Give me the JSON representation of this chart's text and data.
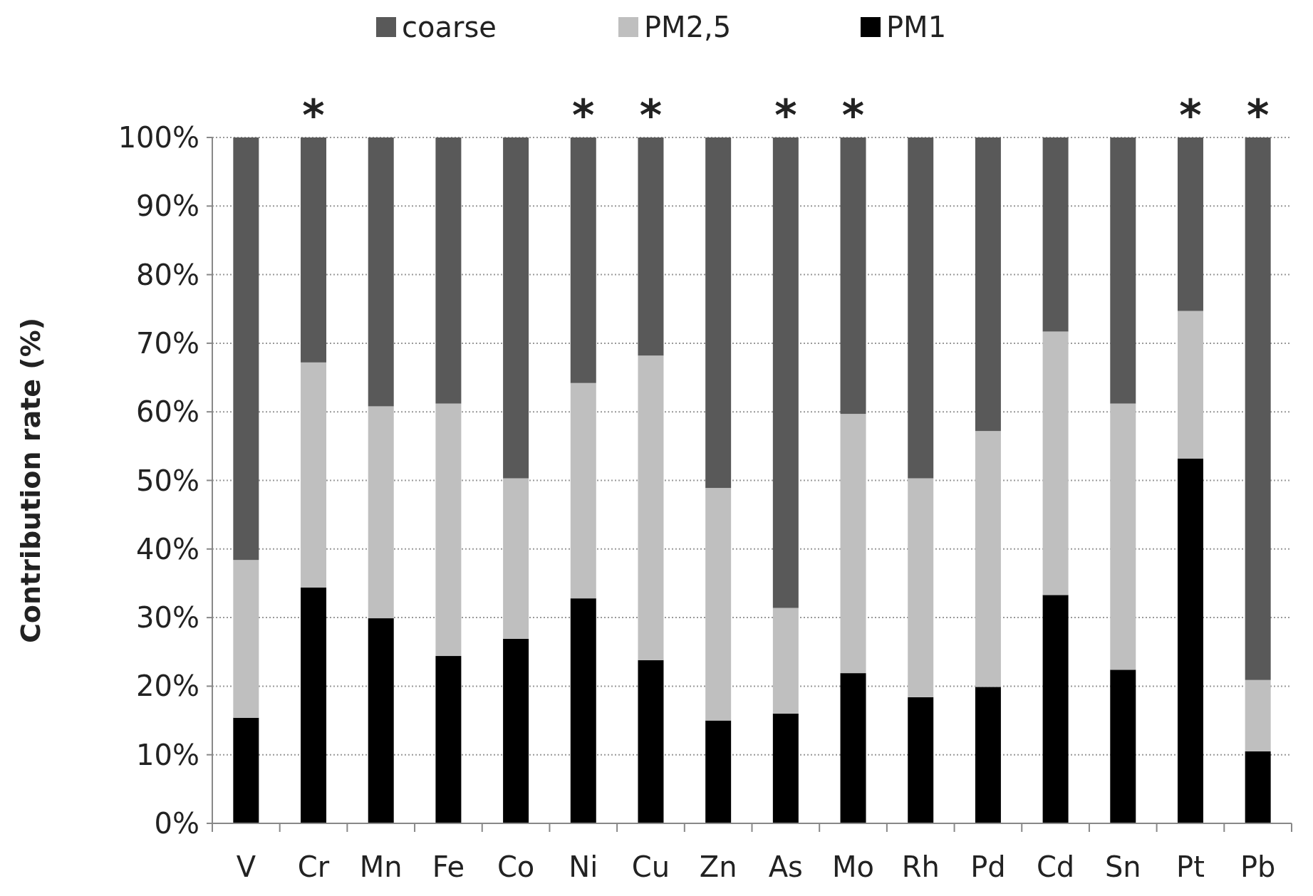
{
  "chart_data": {
    "type": "bar",
    "stacked": true,
    "ylabel": "Contribution rate (%)",
    "categories": [
      "V",
      "Cr",
      "Mn",
      "Fe",
      "Co",
      "Ni",
      "Cu",
      "Zn",
      "As",
      "Mo",
      "Rh",
      "Pd",
      "Cd",
      "Sn",
      "Pt",
      "Pb"
    ],
    "series": [
      {
        "name": "PM1",
        "color": "#000000",
        "values": [
          15.4,
          34.4,
          29.9,
          24.4,
          26.9,
          32.8,
          23.8,
          15.0,
          16.0,
          21.9,
          18.4,
          19.9,
          33.3,
          22.4,
          53.2,
          10.5
        ]
      },
      {
        "name": "PM2,5",
        "color": "#bfbfbf",
        "values": [
          23.0,
          32.8,
          30.9,
          36.8,
          23.4,
          31.4,
          44.4,
          33.9,
          15.4,
          37.8,
          31.9,
          37.3,
          38.4,
          38.8,
          21.5,
          10.4
        ]
      },
      {
        "name": "coarse",
        "color": "#595959",
        "values": [
          61.6,
          32.8,
          39.2,
          38.8,
          49.7,
          35.8,
          31.8,
          51.1,
          68.6,
          40.3,
          49.7,
          42.8,
          28.3,
          38.8,
          25.3,
          79.1
        ]
      }
    ],
    "ylim": [
      0,
      100
    ],
    "yticks": [
      {
        "value": 0,
        "label": "0%"
      },
      {
        "value": 10,
        "label": "10%"
      },
      {
        "value": 20,
        "label": "20%"
      },
      {
        "value": 30,
        "label": "30%"
      },
      {
        "value": 40,
        "label": "40%"
      },
      {
        "value": 50,
        "label": "50%"
      },
      {
        "value": 60,
        "label": "60%"
      },
      {
        "value": 70,
        "label": "70%"
      },
      {
        "value": 80,
        "label": "80%"
      },
      {
        "value": 90,
        "label": "90%"
      },
      {
        "value": 100,
        "label": "100%"
      }
    ],
    "grid": "y",
    "legend": "top",
    "annotations": [
      {
        "text": "*",
        "x": "Cr",
        "y": 100
      },
      {
        "text": "*",
        "x": "Ni",
        "y": 100
      },
      {
        "text": "*",
        "x": "Cu",
        "y": 100
      },
      {
        "text": "*",
        "x": "As",
        "y": 100
      },
      {
        "text": "*",
        "x": "Mo",
        "y": 100
      },
      {
        "text": "*",
        "x": "Pt",
        "y": 100
      },
      {
        "text": "*",
        "x": "Pb",
        "y": 100
      }
    ]
  }
}
